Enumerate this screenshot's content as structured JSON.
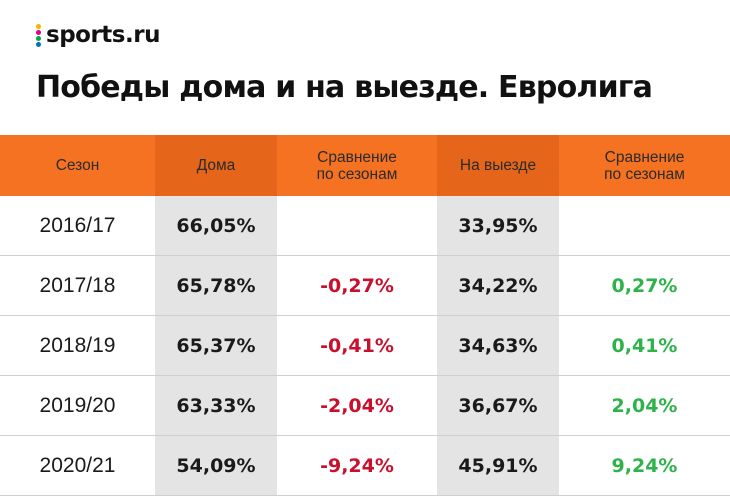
{
  "brand": {
    "logo_text": "sports.ru",
    "dot_colors": [
      "#f5b400",
      "#e6007e",
      "#00a651",
      "#0072bc"
    ]
  },
  "title": "Победы дома и на выезде. Евролига",
  "colors": {
    "header_bg": "#f47221",
    "header_shade": "#e5661a",
    "column_shade": "#e4e4e4",
    "negative": "#c8102e",
    "positive": "#2eb34a"
  },
  "chart_data": {
    "type": "table",
    "columns": [
      "Сезон",
      "Дома",
      "Сравнение по сезонам",
      "На выезде",
      "Сравнение по сезонам"
    ],
    "rows": [
      [
        "2016/17",
        "66,05%",
        "",
        "33,95%",
        ""
      ],
      [
        "2017/18",
        "65,78%",
        "-0,27%",
        "34,22%",
        "0,27%"
      ],
      [
        "2018/19",
        "65,37%",
        "-0,41%",
        "34,63%",
        "0,41%"
      ],
      [
        "2019/20",
        "63,33%",
        "-2,04%",
        "36,67%",
        "2,04%"
      ],
      [
        "2020/21",
        "54,09%",
        "-9,24%",
        "45,91%",
        "9,24%"
      ]
    ]
  }
}
